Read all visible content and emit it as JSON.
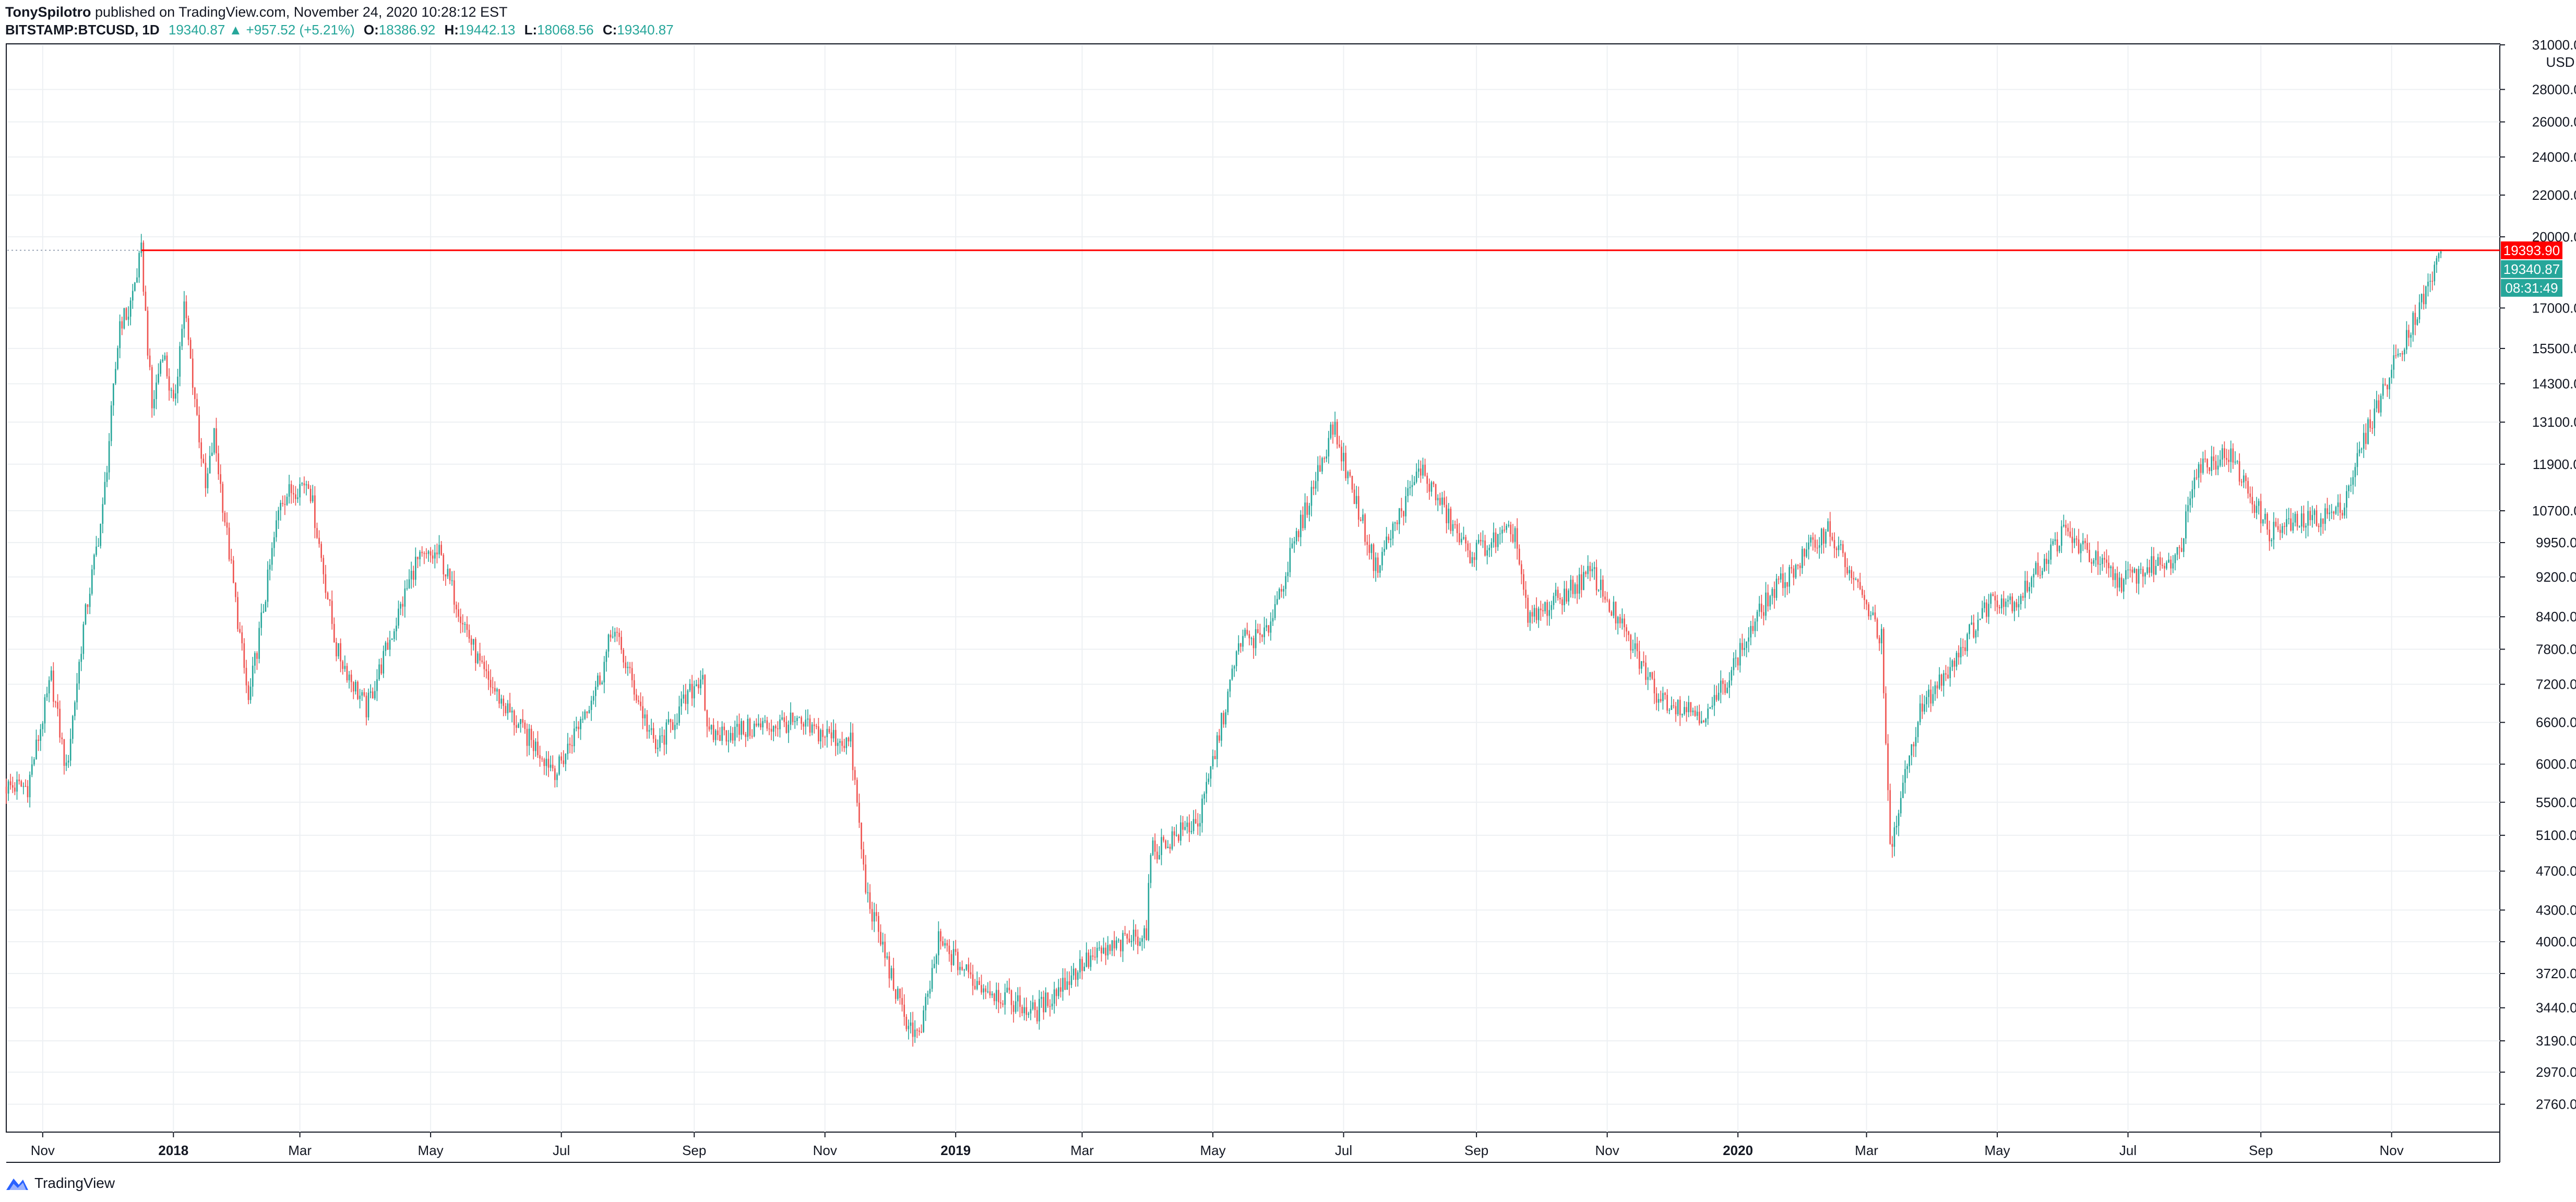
{
  "header": {
    "author": "TonySpilotro",
    "published_text": "published on TradingView.com, November 24, 2020 10:28:12 EST",
    "symbol": "BITSTAMP:BTCUSD, 1D",
    "last_price": "19340.87",
    "change_arrow": "▲",
    "change": "+957.52 (+5.21%)",
    "open_label": "O:",
    "open": "18386.92",
    "high_label": "H:",
    "high": "19442.13",
    "low_label": "L:",
    "low": "18068.56",
    "close_label": "C:",
    "close": "19340.87"
  },
  "footer": {
    "brand": "TradingView",
    "logo_icon": "tradingview-logo-icon"
  },
  "colors": {
    "up": "#26a69a",
    "down": "#ef5350",
    "grid": "#edf0f3",
    "resistance": "#ff0000",
    "axis_text": "#131722"
  },
  "chart_data": {
    "type": "candlestick",
    "scale": "log",
    "currency": "USD",
    "ylim": [
      2590,
      31000
    ],
    "y_ticks": [
      "31000.00",
      "28000.00",
      "26000.00",
      "24000.00",
      "22000.00",
      "20000.00",
      "17000.00",
      "15500.00",
      "14300.00",
      "13100.00",
      "11900.00",
      "10700.00",
      "9950.00",
      "9200.00",
      "8400.00",
      "7800.00",
      "7200.00",
      "6600.00",
      "6000.00",
      "5500.00",
      "5100.00",
      "4700.00",
      "4300.00",
      "4000.00",
      "3720.00",
      "3440.00",
      "3190.00",
      "2970.00",
      "2760.00"
    ],
    "x_range": [
      "2017-10-15",
      "2020-12-21"
    ],
    "x_ticks": [
      {
        "date": "2017-11-01",
        "label": "Nov",
        "bold": false
      },
      {
        "date": "2018-01-01",
        "label": "2018",
        "bold": true
      },
      {
        "date": "2018-03-01",
        "label": "Mar",
        "bold": false
      },
      {
        "date": "2018-05-01",
        "label": "May",
        "bold": false
      },
      {
        "date": "2018-07-01",
        "label": "Jul",
        "bold": false
      },
      {
        "date": "2018-09-01",
        "label": "Sep",
        "bold": false
      },
      {
        "date": "2018-11-01",
        "label": "Nov",
        "bold": false
      },
      {
        "date": "2019-01-01",
        "label": "2019",
        "bold": true
      },
      {
        "date": "2019-03-01",
        "label": "Mar",
        "bold": false
      },
      {
        "date": "2019-05-01",
        "label": "May",
        "bold": false
      },
      {
        "date": "2019-07-01",
        "label": "Jul",
        "bold": false
      },
      {
        "date": "2019-09-01",
        "label": "Sep",
        "bold": false
      },
      {
        "date": "2019-11-01",
        "label": "Nov",
        "bold": false
      },
      {
        "date": "2020-01-01",
        "label": "2020",
        "bold": true
      },
      {
        "date": "2020-03-01",
        "label": "Mar",
        "bold": false
      },
      {
        "date": "2020-05-01",
        "label": "May",
        "bold": false
      },
      {
        "date": "2020-07-01",
        "label": "Jul",
        "bold": false
      },
      {
        "date": "2020-09-01",
        "label": "Sep",
        "bold": false
      },
      {
        "date": "2020-11-01",
        "label": "Nov",
        "bold": false
      }
    ],
    "price_path": [
      [
        "2017-10-15",
        5700
      ],
      [
        "2017-10-25",
        5700
      ],
      [
        "2017-11-05",
        7300
      ],
      [
        "2017-11-12",
        5900
      ],
      [
        "2017-11-20",
        8200
      ],
      [
        "2017-11-29",
        10700
      ],
      [
        "2017-12-07",
        16500
      ],
      [
        "2017-12-11",
        16800
      ],
      [
        "2017-12-17",
        19300
      ],
      [
        "2017-12-22",
        13500
      ],
      [
        "2017-12-27",
        15500
      ],
      [
        "2018-01-01",
        13500
      ],
      [
        "2018-01-06",
        17100
      ],
      [
        "2018-01-16",
        11200
      ],
      [
        "2018-01-20",
        12700
      ],
      [
        "2018-02-05",
        6900
      ],
      [
        "2018-02-20",
        11000
      ],
      [
        "2018-03-05",
        11500
      ],
      [
        "2018-03-18",
        7800
      ],
      [
        "2018-04-01",
        6800
      ],
      [
        "2018-04-24",
        9500
      ],
      [
        "2018-05-05",
        9700
      ],
      [
        "2018-05-25",
        7400
      ],
      [
        "2018-06-12",
        6500
      ],
      [
        "2018-06-29",
        5900
      ],
      [
        "2018-07-20",
        7400
      ],
      [
        "2018-07-25",
        8200
      ],
      [
        "2018-08-14",
        6200
      ],
      [
        "2018-09-05",
        7400
      ],
      [
        "2018-09-07",
        6400
      ],
      [
        "2018-10-15",
        6600
      ],
      [
        "2018-11-13",
        6300
      ],
      [
        "2018-11-20",
        4500
      ],
      [
        "2018-12-07",
        3400
      ],
      [
        "2018-12-15",
        3200
      ],
      [
        "2018-12-24",
        4000
      ],
      [
        "2019-01-10",
        3650
      ],
      [
        "2019-02-07",
        3400
      ],
      [
        "2019-03-01",
        3800
      ],
      [
        "2019-03-31",
        4100
      ],
      [
        "2019-04-02",
        4900
      ],
      [
        "2019-04-25",
        5300
      ],
      [
        "2019-05-14",
        8000
      ],
      [
        "2019-05-25",
        8000
      ],
      [
        "2019-06-26",
        13000
      ],
      [
        "2019-07-16",
        9400
      ],
      [
        "2019-08-06",
        11800
      ],
      [
        "2019-08-28",
        9700
      ],
      [
        "2019-09-19",
        10200
      ],
      [
        "2019-09-25",
        8300
      ],
      [
        "2019-10-25",
        9300
      ],
      [
        "2019-11-25",
        7000
      ],
      [
        "2019-12-18",
        6700
      ],
      [
        "2020-01-14",
        8700
      ],
      [
        "2020-02-12",
        10300
      ],
      [
        "2020-03-08",
        8000
      ],
      [
        "2020-03-12",
        4900
      ],
      [
        "2020-03-25",
        6700
      ],
      [
        "2020-04-29",
        8800
      ],
      [
        "2020-05-10",
        8700
      ],
      [
        "2020-06-01",
        10200
      ],
      [
        "2020-06-27",
        9100
      ],
      [
        "2020-07-25",
        9700
      ],
      [
        "2020-08-01",
        11800
      ],
      [
        "2020-08-17",
        12200
      ],
      [
        "2020-09-05",
        10200
      ],
      [
        "2020-10-08",
        10700
      ],
      [
        "2020-10-21",
        12900
      ],
      [
        "2020-11-05",
        15500
      ],
      [
        "2020-11-18",
        17800
      ],
      [
        "2020-11-24",
        19340.87
      ]
    ],
    "resistance_line": {
      "label": "19393.90",
      "value": 19393.9,
      "from": "2017-12-17"
    },
    "last_price_label": "19340.87",
    "countdown_label": "08:31:49"
  }
}
